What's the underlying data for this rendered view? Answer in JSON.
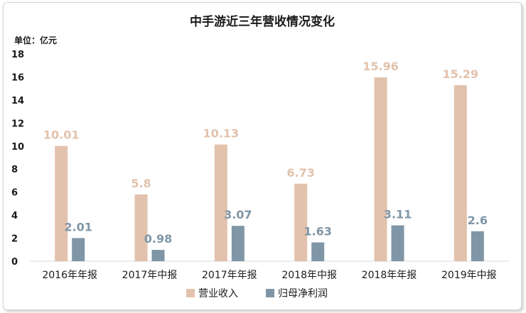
{
  "chart_data": {
    "type": "bar",
    "title": "中手游近三年营收情况变化",
    "unit_label": "单位：亿元",
    "categories": [
      "2016年年报",
      "2017年中报",
      "2017年年报",
      "2018年中报",
      "2018年年报",
      "2019年中报"
    ],
    "series": [
      {
        "name": "营业收入",
        "values": [
          10.01,
          5.8,
          10.13,
          6.73,
          15.96,
          15.29
        ],
        "labels": [
          "10.01",
          "5.8",
          "10.13",
          "6.73",
          "15.96",
          "15.29"
        ],
        "color": "#e2c2ac"
      },
      {
        "name": "归母净利润",
        "values": [
          2.01,
          0.98,
          3.07,
          1.63,
          3.11,
          2.6
        ],
        "labels": [
          "2.01",
          "0.98",
          "3.07",
          "1.63",
          "3.11",
          "2.6"
        ],
        "color": "#7f96a6"
      }
    ],
    "ylim": [
      0,
      18
    ],
    "yticks": [
      "0",
      "2",
      "4",
      "6",
      "8",
      "10",
      "12",
      "14",
      "16",
      "18"
    ],
    "grid": false,
    "legend_position": "bottom"
  }
}
